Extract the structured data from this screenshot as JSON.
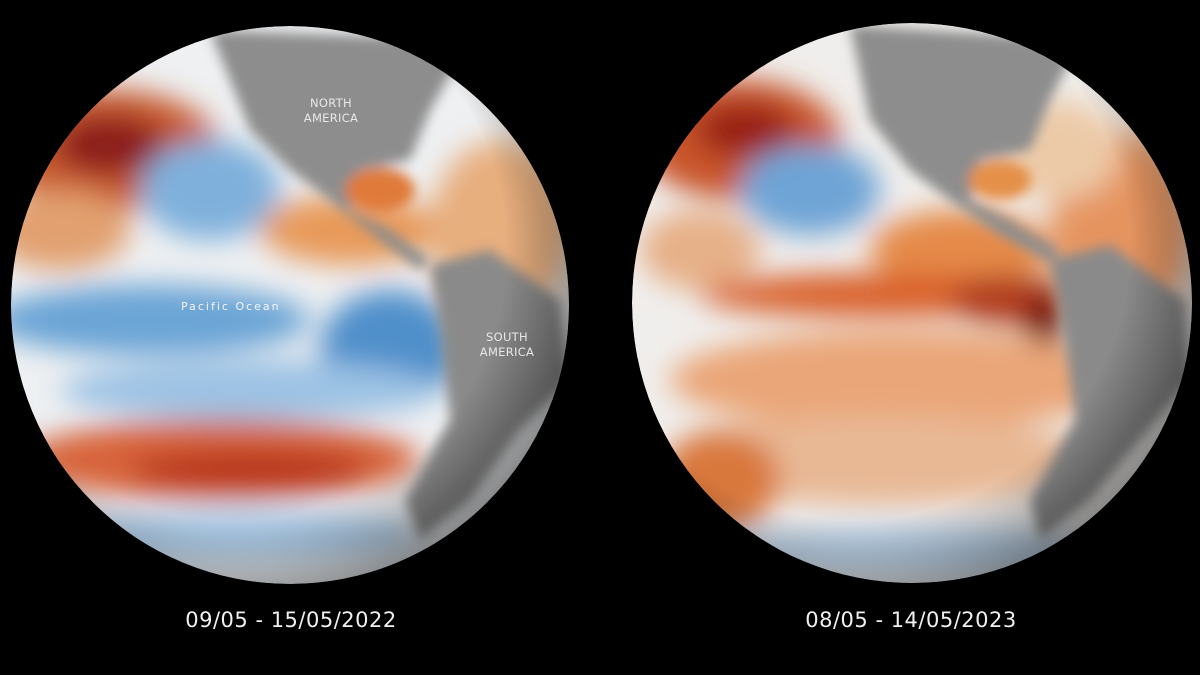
{
  "panels": [
    {
      "date_range": "09/05 - 15/05/2022",
      "labels": {
        "north_america": "NORTH\nAMERICA",
        "south_america": "SOUTH\nAMERICA",
        "ocean": "Pacific Ocean"
      }
    },
    {
      "date_range": "08/05 - 14/05/2023"
    }
  ],
  "colors": {
    "background": "#000000",
    "land": "#8c8c8c",
    "warm": "#c8401e",
    "very_warm": "#7a0f12",
    "cool": "#3f86c4",
    "neutral": "#f2f2f2"
  }
}
